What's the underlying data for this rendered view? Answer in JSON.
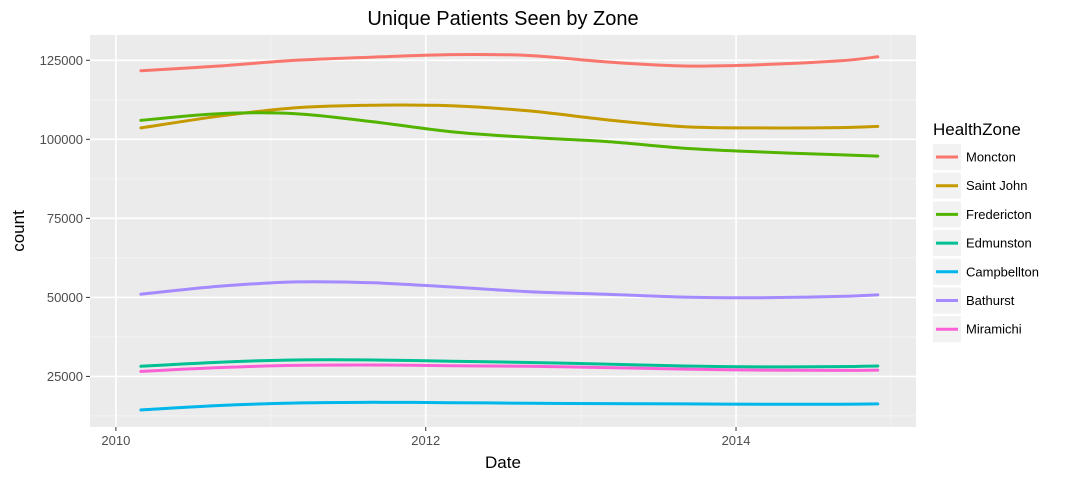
{
  "chart_data": {
    "type": "line",
    "title": "Unique Patients Seen by Zone",
    "xlabel": "Date",
    "ylabel": "count",
    "x": [
      "2010-03-01",
      "2010-09-01",
      "2011-03-01",
      "2011-09-01",
      "2012-03-01",
      "2012-09-01",
      "2013-03-01",
      "2013-09-01",
      "2014-03-01",
      "2014-09-01",
      "2014-12-01"
    ],
    "xlim": [
      "2009-11-01",
      "2015-03-01"
    ],
    "ylim": [
      9000,
      133000
    ],
    "x_ticks": [
      {
        "value": "2010-01-01",
        "label": "2010"
      },
      {
        "value": "2012-01-01",
        "label": "2012"
      },
      {
        "value": "2014-01-01",
        "label": "2014"
      }
    ],
    "x_minor_ticks": [
      "2011-01-01",
      "2013-01-01",
      "2015-01-01"
    ],
    "y_ticks": [
      25000,
      50000,
      75000,
      100000,
      125000
    ],
    "y_tick_labels": [
      "25000",
      "50000",
      "75000",
      "100000",
      "125000"
    ],
    "y_minor_ticks": [
      12500,
      37500,
      62500,
      87500,
      112500
    ],
    "grid": true,
    "legend": {
      "title": "HealthZone",
      "position": "right"
    },
    "series": [
      {
        "name": "Moncton",
        "color": "#F8766D",
        "values": [
          121700,
          123200,
          125000,
          126000,
          126800,
          126500,
          124500,
          123200,
          123600,
          124800,
          126100
        ]
      },
      {
        "name": "Saint John",
        "color": "#C49A00",
        "values": [
          103600,
          107300,
          110000,
          110800,
          110600,
          109000,
          106200,
          104000,
          103600,
          103700,
          104100
        ]
      },
      {
        "name": "Fredericton",
        "color": "#53B400",
        "values": [
          106000,
          108100,
          108100,
          105500,
          102400,
          100600,
          99300,
          97200,
          96000,
          95100,
          94700
        ]
      },
      {
        "name": "Edmunston",
        "color": "#00C094",
        "values": [
          28200,
          29500,
          30200,
          30200,
          29800,
          29400,
          28900,
          28300,
          28000,
          28100,
          28300
        ]
      },
      {
        "name": "Campbellton",
        "color": "#00B6EB",
        "values": [
          14400,
          15800,
          16600,
          16800,
          16700,
          16500,
          16400,
          16300,
          16200,
          16200,
          16300
        ]
      },
      {
        "name": "Bathurst",
        "color": "#A58AFF",
        "values": [
          51000,
          53500,
          54900,
          54600,
          53300,
          51800,
          51000,
          50100,
          49900,
          50300,
          50800
        ]
      },
      {
        "name": "Miramichi",
        "color": "#FB61D7",
        "values": [
          26600,
          27800,
          28500,
          28600,
          28400,
          28200,
          27800,
          27300,
          27000,
          26900,
          27000
        ]
      }
    ]
  }
}
